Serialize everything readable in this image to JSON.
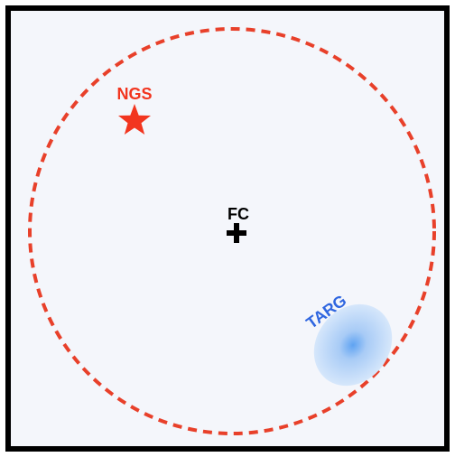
{
  "field_diagram": {
    "guide_star": {
      "label": "NGS",
      "icon": "star-icon"
    },
    "field_center": {
      "label": "FC",
      "icon": "plus-icon"
    },
    "target": {
      "label": "TARG",
      "icon": "galaxy-blob-icon"
    },
    "colors": {
      "border": "#000000",
      "background": "#f4f6fb",
      "field_circle": "#e8402a",
      "ngs": "#f2351f",
      "fc": "#000000",
      "targ_label": "#2f66e0",
      "targ_core": "#5fa3f2",
      "targ_halo": "#d6e7fb"
    }
  }
}
